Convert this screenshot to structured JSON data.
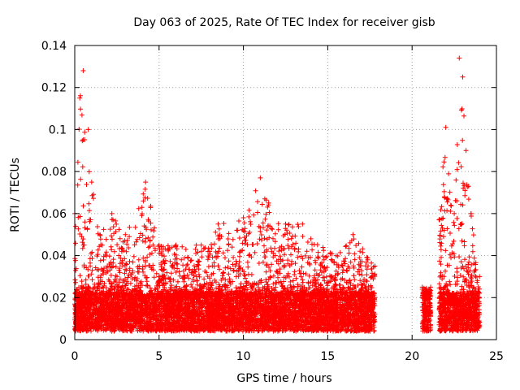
{
  "chart_data": {
    "type": "scatter",
    "title": "Day 063 of 2025, Rate Of TEC Index for receiver gisb",
    "xlabel": "GPS time / hours",
    "ylabel": "ROTI / TECUs",
    "xlim": [
      0,
      25
    ],
    "ylim": [
      0,
      0.14
    ],
    "xticks": [
      0,
      5,
      10,
      15,
      20,
      25
    ],
    "xtick_labels": [
      "0",
      "5",
      "10",
      "15",
      "20",
      "25"
    ],
    "yticks": [
      0,
      0.02,
      0.04,
      0.06,
      0.08,
      0.1,
      0.12,
      0.14
    ],
    "ytick_labels": [
      "0",
      "0.02",
      "0.04",
      "0.06",
      "0.08",
      "0.1",
      "0.12",
      "0.14"
    ],
    "grid": true,
    "marker": "+",
    "color": "#ff0000",
    "series": [
      {
        "name": "ROTI",
        "segments": [
          {
            "x_start": 0.0,
            "x_end": 17.8,
            "baseline_min": 0.004,
            "baseline_max": 0.022
          },
          {
            "x_start": 20.6,
            "x_end": 21.1,
            "baseline_min": 0.004,
            "baseline_max": 0.022
          },
          {
            "x_start": 21.6,
            "x_end": 24.0,
            "baseline_min": 0.004,
            "baseline_max": 0.022
          }
        ],
        "envelope": [
          {
            "x": 0.0,
            "y": 0.06
          },
          {
            "x": 0.3,
            "y": 0.115
          },
          {
            "x": 0.5,
            "y": 0.128
          },
          {
            "x": 0.8,
            "y": 0.1
          },
          {
            "x": 1.0,
            "y": 0.075
          },
          {
            "x": 1.5,
            "y": 0.05
          },
          {
            "x": 2.2,
            "y": 0.06
          },
          {
            "x": 3.0,
            "y": 0.05
          },
          {
            "x": 4.2,
            "y": 0.075
          },
          {
            "x": 5.0,
            "y": 0.045
          },
          {
            "x": 6.0,
            "y": 0.045
          },
          {
            "x": 7.5,
            "y": 0.045
          },
          {
            "x": 8.5,
            "y": 0.055
          },
          {
            "x": 10.0,
            "y": 0.058
          },
          {
            "x": 11.0,
            "y": 0.077
          },
          {
            "x": 11.5,
            "y": 0.065
          },
          {
            "x": 12.5,
            "y": 0.055
          },
          {
            "x": 13.5,
            "y": 0.055
          },
          {
            "x": 14.0,
            "y": 0.048
          },
          {
            "x": 15.5,
            "y": 0.04
          },
          {
            "x": 16.5,
            "y": 0.05
          },
          {
            "x": 17.8,
            "y": 0.035
          },
          {
            "x": 20.6,
            "y": 0.025
          },
          {
            "x": 21.1,
            "y": 0.025
          },
          {
            "x": 21.6,
            "y": 0.057
          },
          {
            "x": 22.0,
            "y": 0.101
          },
          {
            "x": 22.5,
            "y": 0.06
          },
          {
            "x": 22.8,
            "y": 0.134
          },
          {
            "x": 23.0,
            "y": 0.125
          },
          {
            "x": 23.2,
            "y": 0.09
          },
          {
            "x": 23.5,
            "y": 0.06
          },
          {
            "x": 24.0,
            "y": 0.03
          }
        ]
      }
    ]
  }
}
